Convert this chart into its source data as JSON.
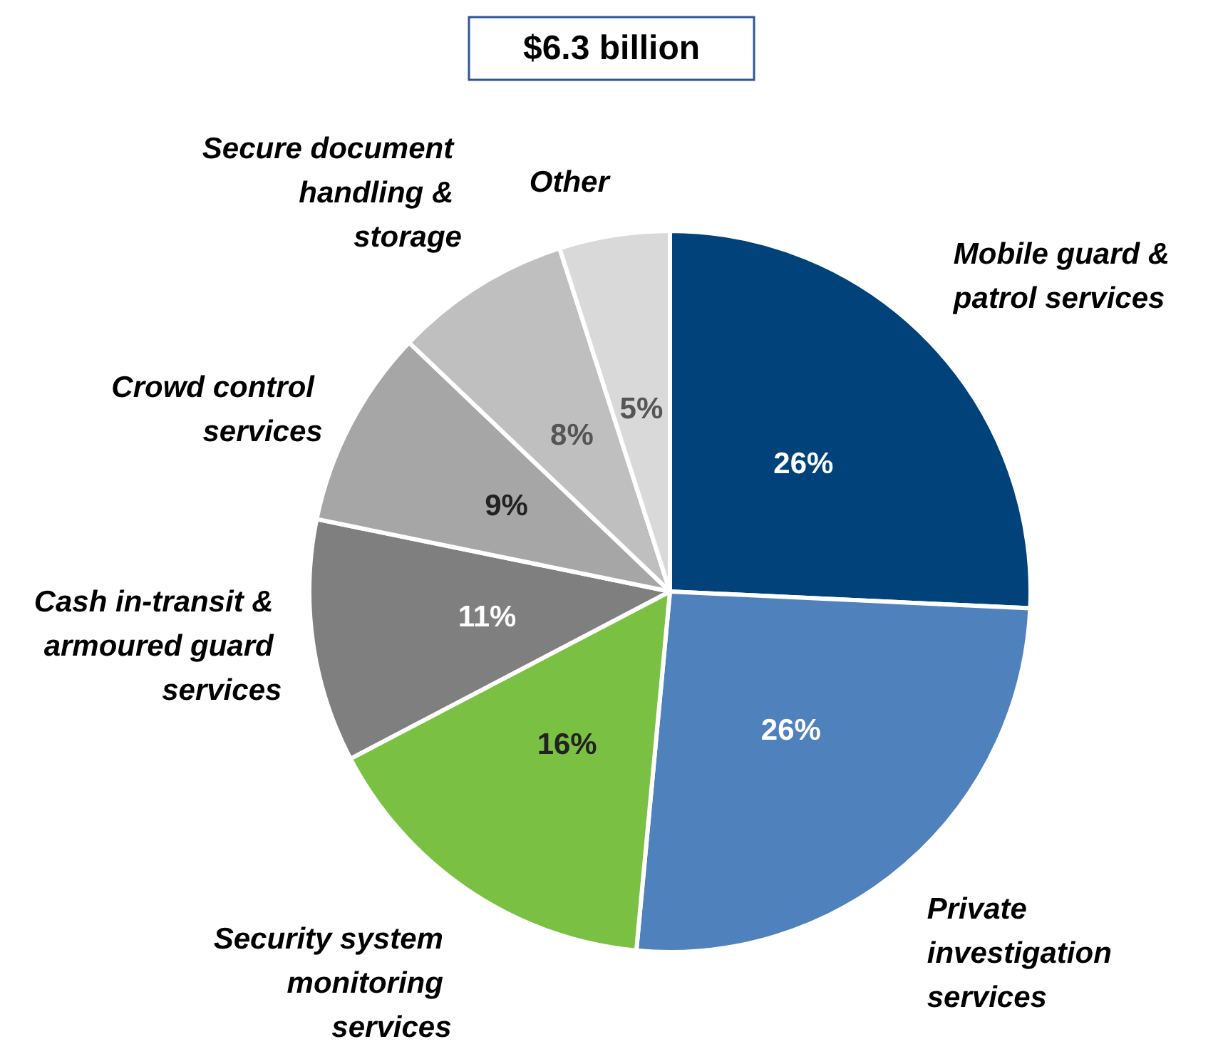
{
  "chart_data": {
    "type": "pie",
    "title": "$6.3 billion",
    "categories": [
      "Mobile guard & patrol services",
      "Private investigation services",
      "Security system monitoring services",
      "Cash in-transit & armoured guard services",
      "Crowd control services",
      "Secure document handling & storage",
      "Other"
    ],
    "values": [
      26,
      26,
      16,
      11,
      9,
      8,
      5
    ],
    "colors": [
      "#01427a",
      "#4f81bd",
      "#7ac143",
      "#7f7f7f",
      "#a6a6a6",
      "#bfbfbf",
      "#d9d9d9"
    ],
    "value_labels": [
      "26%",
      "26%",
      "16%",
      "11%",
      "9%",
      "8%",
      "5%"
    ],
    "legend": false
  }
}
